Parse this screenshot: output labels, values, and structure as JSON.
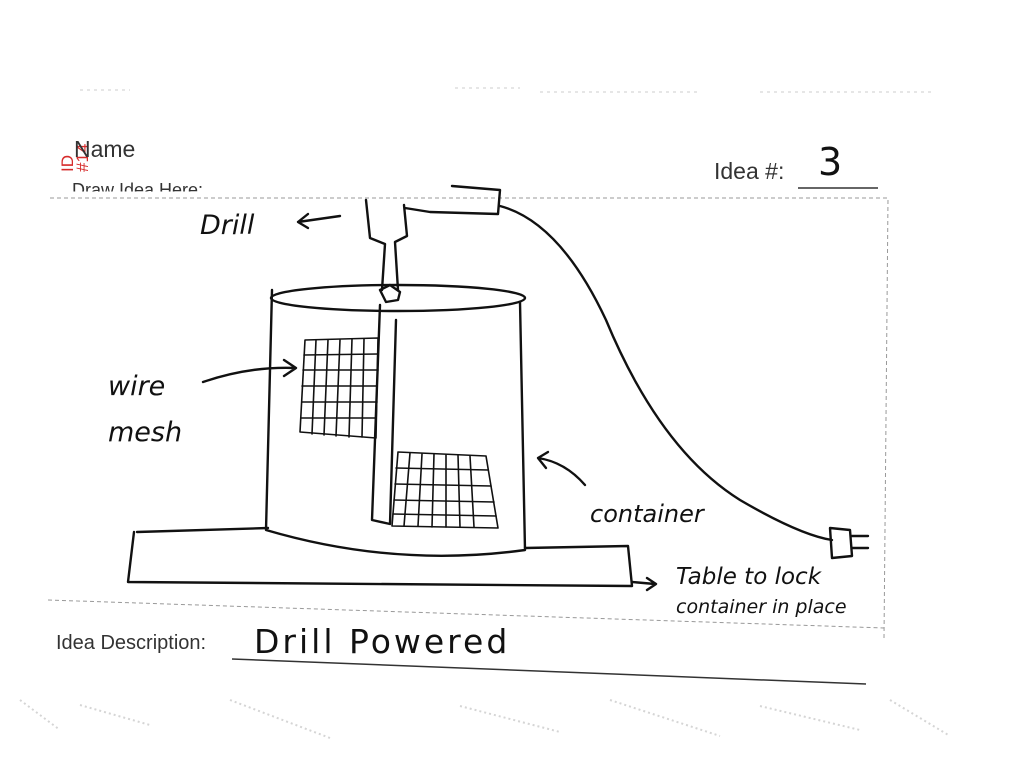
{
  "form": {
    "name_label": "Name",
    "draw_label": "Draw Idea Here:",
    "idea_number_label": "Idea #:",
    "idea_number_value": "3",
    "description_label": "Idea Description:",
    "description_value": "Drill Powered"
  },
  "stamp": {
    "line1": "ID",
    "line2": "#14"
  },
  "annotations": {
    "drill": "Drill",
    "wire_mesh_line1": "wire",
    "wire_mesh_line2": "mesh",
    "container": "container",
    "table_line1": "Table to lock",
    "table_line2": "container in place"
  }
}
